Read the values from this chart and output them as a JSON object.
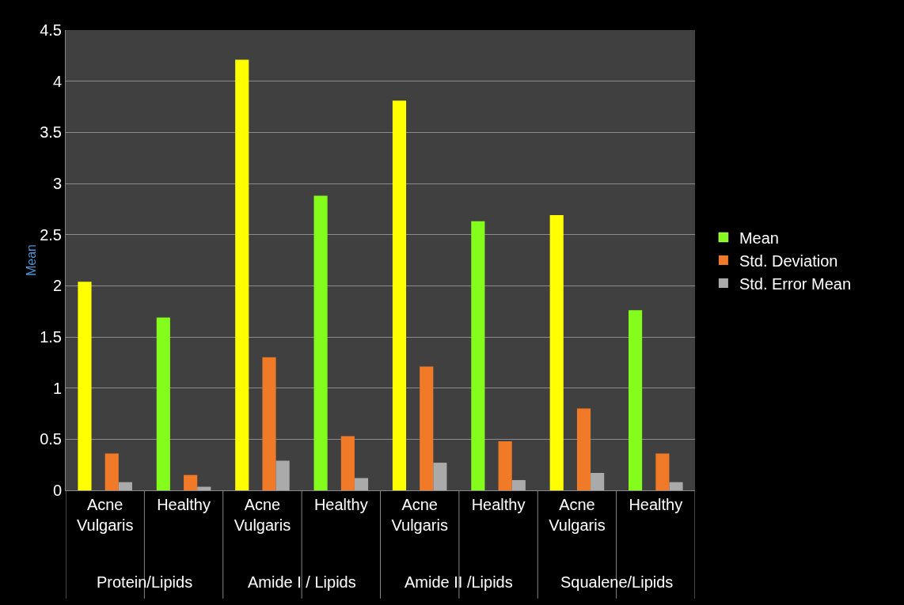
{
  "chart_data": {
    "type": "bar",
    "ylabel": "Mean",
    "categories": [
      "Acne Vulgaris",
      "Healthy",
      "Acne Vulgaris",
      "Healthy",
      "Acne Vulgaris",
      "Healthy",
      "Acne Vulgaris",
      "Healthy"
    ],
    "series": [
      {
        "name": "Mean",
        "color": "#84fc1c",
        "colors": [
          "#ffff00",
          "#84fc1c",
          "#ffff00",
          "#84fc1c",
          "#ffff00",
          "#84fc1c",
          "#ffff00",
          "#84fc1c"
        ],
        "values": [
          2.04,
          1.69,
          4.21,
          2.88,
          3.81,
          2.63,
          2.69,
          1.76
        ]
      },
      {
        "name": "Std. Deviation",
        "color": "#f07a28",
        "values": [
          0.36,
          0.15,
          1.3,
          0.53,
          1.21,
          0.48,
          0.8,
          0.36
        ]
      },
      {
        "name": "Std. Error Mean",
        "color": "#aaaaaa",
        "values": [
          0.08,
          0.035,
          0.29,
          0.12,
          0.27,
          0.1,
          0.17,
          0.08
        ]
      }
    ],
    "annotations": [
      "Protein/Lipids",
      "Amide I / Lipids",
      "Amide II /Lipids",
      "Squalene/Lipids"
    ],
    "ylim": [
      0,
      4.5
    ],
    "yticks": [
      0,
      0.5,
      1,
      1.5,
      2,
      2.5,
      3,
      3.5,
      4,
      4.5
    ],
    "grid": "y",
    "legend": "right"
  }
}
